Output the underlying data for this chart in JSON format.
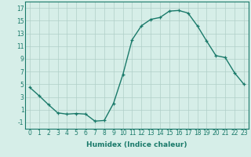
{
  "x": [
    0,
    1,
    2,
    3,
    4,
    5,
    6,
    7,
    8,
    9,
    10,
    11,
    12,
    13,
    14,
    15,
    16,
    17,
    18,
    19,
    20,
    21,
    22,
    23
  ],
  "y": [
    4.5,
    3.2,
    1.8,
    0.5,
    0.3,
    0.4,
    0.3,
    -0.8,
    -0.7,
    2.0,
    6.5,
    12.0,
    14.2,
    15.2,
    15.5,
    16.5,
    16.6,
    16.2,
    14.2,
    11.8,
    9.5,
    9.2,
    6.8,
    5.0
  ],
  "line_color": "#1a7a6a",
  "marker": "+",
  "bg_color": "#d6eee8",
  "grid_color": "#b0cfc8",
  "xlabel": "Humidex (Indice chaleur)",
  "ylim": [
    -2,
    18
  ],
  "xlim": [
    -0.5,
    23.5
  ],
  "yticks": [
    -1,
    1,
    3,
    5,
    7,
    9,
    11,
    13,
    15,
    17
  ],
  "xticks": [
    0,
    1,
    2,
    3,
    4,
    5,
    6,
    7,
    8,
    9,
    10,
    11,
    12,
    13,
    14,
    15,
    16,
    17,
    18,
    19,
    20,
    21,
    22,
    23
  ],
  "xlabel_fontsize": 6.5,
  "tick_fontsize": 5.5,
  "line_width": 1.0,
  "marker_size": 3.5
}
